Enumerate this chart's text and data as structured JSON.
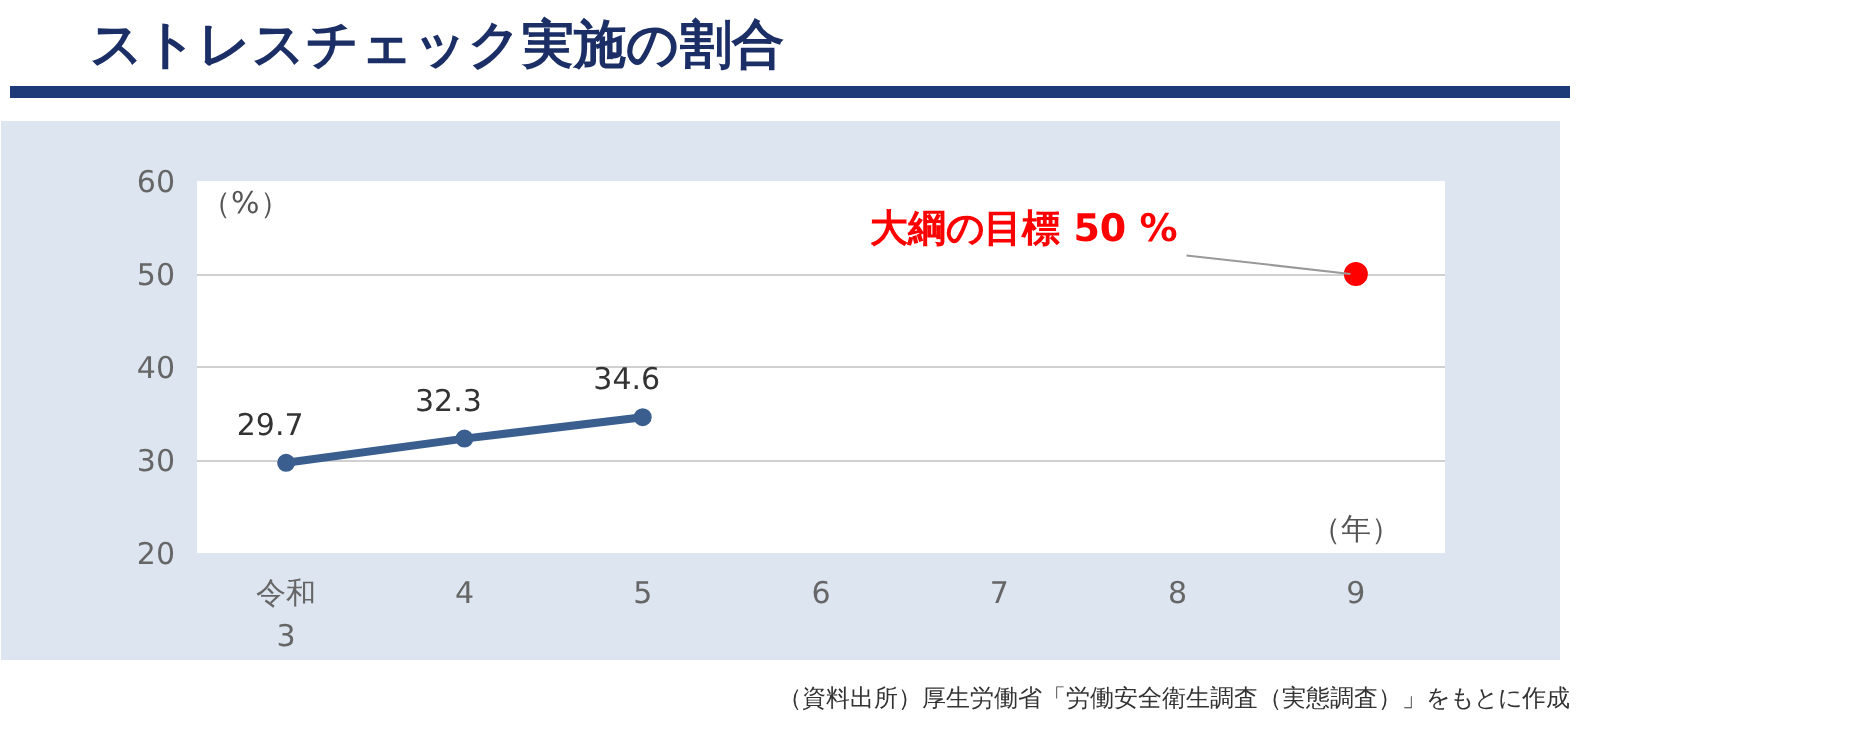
{
  "chart_data": {
    "type": "line",
    "title": "ストレスチェック実施の割合",
    "ylabel": "（%）",
    "xlabel": "（年）",
    "x": [
      3,
      4,
      5
    ],
    "series": [
      {
        "color": "#3a5f8f",
        "values": [
          29.7,
          32.3,
          34.6
        ],
        "value_labels": [
          "29.7",
          "32.3",
          "34.6"
        ]
      },
      {
        "type": "scatter",
        "color": "#ff0000",
        "x": [
          9
        ],
        "values": [
          50
        ]
      }
    ],
    "xlim": [
      2.5,
      9.5
    ],
    "ylim": [
      20,
      60
    ],
    "xticks": [
      {
        "value": 3,
        "label": "令和\n3"
      },
      4,
      5,
      6,
      7,
      8,
      9
    ],
    "yticks": [
      20,
      30,
      40,
      50,
      60
    ],
    "grid": "y",
    "marker": "circle",
    "annotations": [
      {
        "text": "大綱の目標 50 %",
        "x": 9,
        "y": 50
      },
      "（資料出所）厚生労働省「労働安全衛生調査（実態調査）」をもとに作成"
    ]
  }
}
